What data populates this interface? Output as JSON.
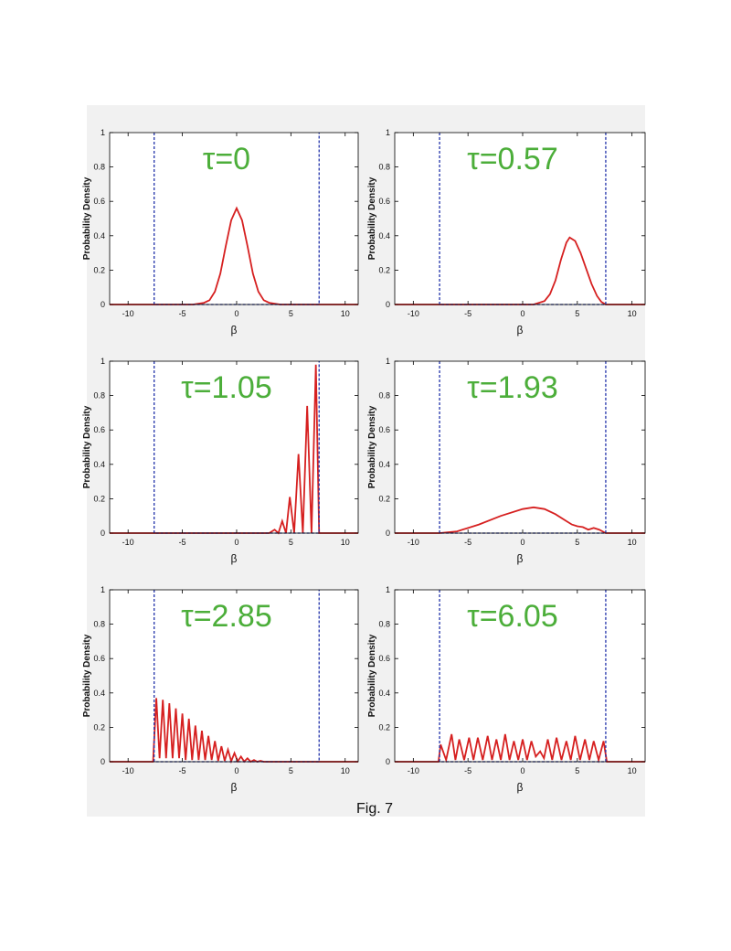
{
  "caption": "Fig. 7",
  "chart_data": [
    {
      "type": "line",
      "annotation": "τ=0",
      "xlabel": "β",
      "ylabel": "Probability Density",
      "xlim": [
        -11.7,
        11.2
      ],
      "ylim": [
        0,
        1
      ],
      "xticks": [
        -10,
        -5,
        0,
        5,
        10
      ],
      "yticks": [
        0,
        0.2,
        0.4,
        0.6,
        0.8,
        1
      ],
      "series": [
        {
          "color": "#d62020",
          "x": [
            -11.7,
            -4,
            -3,
            -2.5,
            -2,
            -1.5,
            -1,
            -0.5,
            0,
            0.5,
            1,
            1.5,
            2,
            2.5,
            3,
            4,
            11.2
          ],
          "values": [
            0,
            0,
            0.01,
            0.025,
            0.075,
            0.18,
            0.34,
            0.49,
            0.56,
            0.49,
            0.34,
            0.18,
            0.075,
            0.025,
            0.01,
            0,
            0
          ]
        },
        {
          "color": "#2233aa",
          "dashed": true,
          "x": [
            -7.6,
            -7.6,
            7.6,
            7.6
          ],
          "values": [
            1,
            0,
            0,
            1
          ]
        }
      ]
    },
    {
      "type": "line",
      "annotation": "τ=0.57",
      "xlabel": "β",
      "ylabel": "Probability Density",
      "xlim": [
        -11.7,
        11.2
      ],
      "ylim": [
        0,
        1
      ],
      "xticks": [
        -10,
        -5,
        0,
        5,
        10
      ],
      "yticks": [
        0,
        0.2,
        0.4,
        0.6,
        0.8,
        1
      ],
      "series": [
        {
          "color": "#d62020",
          "x": [
            -11.7,
            1,
            2,
            2.5,
            3,
            3.5,
            4,
            4.3,
            4.8,
            5.3,
            5.8,
            6.3,
            6.8,
            7.2,
            7.6,
            11.2
          ],
          "values": [
            0,
            0,
            0.02,
            0.06,
            0.14,
            0.26,
            0.36,
            0.39,
            0.37,
            0.3,
            0.21,
            0.12,
            0.05,
            0.015,
            0,
            0
          ]
        },
        {
          "color": "#2233aa",
          "dashed": true,
          "x": [
            -7.6,
            -7.6,
            7.6,
            7.6
          ],
          "values": [
            1,
            0,
            0,
            1
          ]
        }
      ]
    },
    {
      "type": "line",
      "annotation": "τ=1.05",
      "xlabel": "β",
      "ylabel": "Probability Density",
      "xlim": [
        -11.7,
        11.2
      ],
      "ylim": [
        0,
        1
      ],
      "xticks": [
        -10,
        -5,
        0,
        5,
        10
      ],
      "yticks": [
        0,
        0.2,
        0.4,
        0.6,
        0.8,
        1
      ],
      "series": [
        {
          "color": "#d62020",
          "x": [
            -11.7,
            3,
            3.5,
            3.85,
            4.2,
            4.55,
            4.9,
            5.3,
            5.7,
            6.1,
            6.5,
            6.9,
            7.3,
            7.6,
            11.2
          ],
          "values": [
            0,
            0,
            0.02,
            0,
            0.07,
            0,
            0.21,
            0,
            0.46,
            0,
            0.74,
            0,
            0.98,
            0,
            0
          ]
        },
        {
          "color": "#2233aa",
          "dashed": true,
          "x": [
            -7.6,
            -7.6,
            7.6,
            7.6
          ],
          "values": [
            1,
            0,
            0,
            1
          ]
        }
      ]
    },
    {
      "type": "line",
      "annotation": "τ=1.93",
      "xlabel": "β",
      "ylabel": "Probability Density",
      "xlim": [
        -11.7,
        11.2
      ],
      "ylim": [
        0,
        1
      ],
      "xticks": [
        -10,
        -5,
        0,
        5,
        10
      ],
      "yticks": [
        0,
        0.2,
        0.4,
        0.6,
        0.8,
        1
      ],
      "series": [
        {
          "color": "#d62020",
          "x": [
            -11.7,
            -7.6,
            -6,
            -4,
            -2,
            0,
            1,
            2,
            3,
            4,
            4.5,
            5,
            5.5,
            6,
            6.5,
            7,
            7.6,
            11.2
          ],
          "values": [
            0,
            0,
            0.01,
            0.05,
            0.1,
            0.14,
            0.15,
            0.14,
            0.11,
            0.07,
            0.05,
            0.04,
            0.035,
            0.02,
            0.03,
            0.02,
            0,
            0
          ]
        },
        {
          "color": "#2233aa",
          "dashed": true,
          "x": [
            -7.6,
            -7.6,
            7.6,
            7.6
          ],
          "values": [
            1,
            0,
            0,
            1
          ]
        }
      ]
    },
    {
      "type": "line",
      "annotation": "τ=2.85",
      "xlabel": "β",
      "ylabel": "Probability Density",
      "xlim": [
        -11.7,
        11.2
      ],
      "ylim": [
        0,
        1
      ],
      "xticks": [
        -10,
        -5,
        0,
        5,
        10
      ],
      "yticks": [
        0,
        0.2,
        0.4,
        0.6,
        0.8,
        1
      ],
      "series": [
        {
          "color": "#d62020",
          "x": [
            -11.7,
            -7.7,
            -7.4,
            -7.1,
            -6.8,
            -6.5,
            -6.2,
            -5.9,
            -5.6,
            -5.3,
            -5.0,
            -4.7,
            -4.4,
            -4.1,
            -3.8,
            -3.5,
            -3.2,
            -2.9,
            -2.6,
            -2.3,
            -2.0,
            -1.7,
            -1.4,
            -1.1,
            -0.8,
            -0.5,
            -0.2,
            0.1,
            0.4,
            0.7,
            1.0,
            1.3,
            1.6,
            1.9,
            2.2,
            2.5,
            11.2
          ],
          "values": [
            0,
            0,
            0.37,
            0.02,
            0.36,
            0.02,
            0.34,
            0.02,
            0.31,
            0.02,
            0.28,
            0.01,
            0.25,
            0.01,
            0.21,
            0.01,
            0.18,
            0.01,
            0.15,
            0.01,
            0.12,
            0.005,
            0.09,
            0.005,
            0.07,
            0.003,
            0.05,
            0.002,
            0.03,
            0.001,
            0.02,
            0,
            0.01,
            0,
            0.005,
            0,
            0
          ]
        },
        {
          "color": "#2233aa",
          "dashed": true,
          "x": [
            -7.6,
            -7.6,
            7.6,
            7.6
          ],
          "values": [
            1,
            0,
            0,
            1
          ]
        }
      ]
    },
    {
      "type": "line",
      "annotation": "τ=6.05",
      "xlabel": "β",
      "ylabel": "Probability Density",
      "xlim": [
        -11.7,
        11.2
      ],
      "ylim": [
        0,
        1
      ],
      "xticks": [
        -10,
        -5,
        0,
        5,
        10
      ],
      "yticks": [
        0,
        0.2,
        0.4,
        0.6,
        0.8,
        1
      ],
      "series": [
        {
          "color": "#d62020",
          "x": [
            -11.7,
            -7.7,
            -7.5,
            -7.0,
            -6.5,
            -6.15,
            -5.8,
            -5.35,
            -4.9,
            -4.5,
            -4.1,
            -3.65,
            -3.2,
            -2.8,
            -2.4,
            -2.0,
            -1.6,
            -1.2,
            -0.8,
            -0.4,
            0.0,
            0.4,
            0.8,
            1.2,
            1.6,
            1.95,
            2.3,
            2.7,
            3.1,
            3.55,
            4.0,
            4.4,
            4.8,
            5.25,
            5.7,
            6.1,
            6.5,
            6.95,
            7.4,
            7.7,
            11.2
          ],
          "values": [
            0,
            0,
            0.1,
            0.01,
            0.16,
            0.01,
            0.13,
            0.01,
            0.14,
            0.01,
            0.14,
            0.01,
            0.15,
            0.01,
            0.13,
            0.01,
            0.16,
            0.01,
            0.12,
            0.01,
            0.13,
            0.01,
            0.12,
            0.03,
            0.06,
            0.02,
            0.13,
            0.01,
            0.14,
            0.01,
            0.12,
            0.01,
            0.15,
            0.01,
            0.13,
            0.01,
            0.12,
            0.01,
            0.12,
            0,
            0
          ]
        },
        {
          "color": "#2233aa",
          "dashed": true,
          "x": [
            -7.6,
            -7.6,
            7.6,
            7.6
          ],
          "values": [
            1,
            0,
            0,
            1
          ]
        }
      ]
    }
  ]
}
